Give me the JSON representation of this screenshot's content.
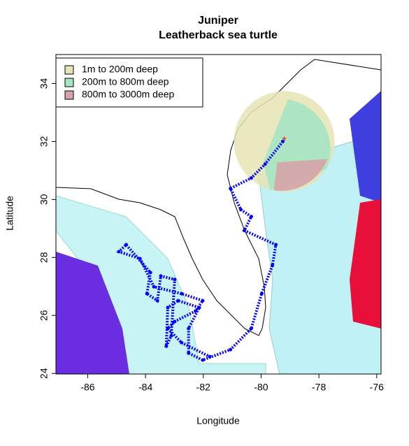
{
  "chart_data": {
    "type": "map",
    "title": "Juniper",
    "subtitle": "Leatherback sea turtle",
    "x_label": "Longitude",
    "y_label": "Latitude",
    "xlim": [
      -87.1,
      -75.85
    ],
    "ylim": [
      23.98,
      35.0
    ],
    "xticks": [
      -86,
      -84,
      -82,
      -80,
      -78,
      -76
    ],
    "yticks": [
      24,
      26,
      28,
      30,
      32,
      34
    ],
    "legend": {
      "position": "topleft",
      "entries": [
        {
          "label": "1m to 200m deep",
          "color": "#e6e4b4"
        },
        {
          "label": "200m to 800m deep",
          "color": "#a6e4c2"
        },
        {
          "label": "800m to 3000m deep",
          "color": "#d6a3aa"
        }
      ]
    },
    "track": {
      "color": "#0000ff",
      "x": [
        -79.25,
        -79.86,
        -80.34,
        -81.06,
        -80.7,
        -80.34,
        -80.58,
        -79.49,
        -79.61,
        -79.98,
        -80.34,
        -81.06,
        -82.02,
        -82.51,
        -82.51,
        -82.14,
        -82.87,
        -83.23,
        -83.28,
        -83.11,
        -82.99,
        -83.47,
        -83.59,
        -83.95,
        -83.83,
        -84.67,
        -84.92,
        -84.19,
        -83.71,
        -82.75,
        -82.02,
        -82.27,
        -82.99,
        -83.23,
        -82.75,
        -81.78
      ],
      "y": [
        32.0,
        31.22,
        30.74,
        30.38,
        29.65,
        29.41,
        28.93,
        28.44,
        27.72,
        26.75,
        25.55,
        24.82,
        24.46,
        24.7,
        25.55,
        26.27,
        26.51,
        26.27,
        24.94,
        25.3,
        27.24,
        27.36,
        26.51,
        26.75,
        27.48,
        28.44,
        28.2,
        27.96,
        26.99,
        26.75,
        26.51,
        26.15,
        25.79,
        25.55,
        25.06,
        24.58
      ]
    },
    "start": {
      "x": -79.2,
      "y": 32.0,
      "color": "#ff0000"
    }
  }
}
